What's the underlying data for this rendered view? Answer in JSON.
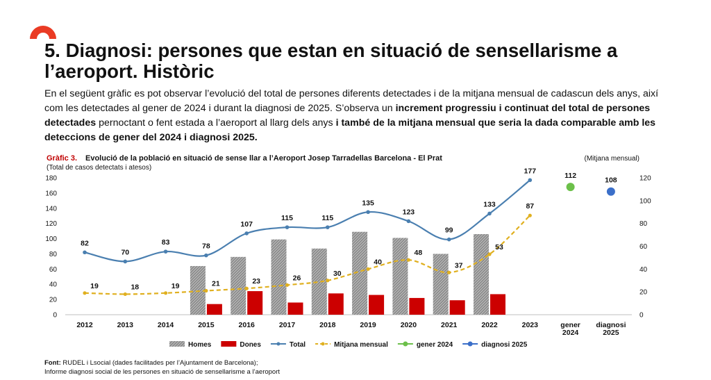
{
  "title": "5. Diagnosi: persones que estan en situació de sensellarisme a l’aeroport. Històric",
  "intro": {
    "t1": "En el següent gràfic es pot observar l’evolució del total de persones diferents detectades i de la mitjana mensual de cadascun dels anys, així com les detectades al gener de 2024 i durant la diagnosi de 2025. S’observa un ",
    "b1": "increment progressiu i continuat del total de persones detectades",
    "t2": " pernoctant o fent estada a l’aeroport al llarg dels anys ",
    "b2": "i també de la mitjana mensual que seria la dada comparable amb les deteccions de gener del 2024 i diagnosi 2025."
  },
  "chart_data": {
    "type": "bar+line",
    "title_prefix": "Gràfic 3.",
    "title": "Evolució de la població en situació de sense llar a l’Aeroport Josep Tarradellas Barcelona - El Prat",
    "ylabel_left": "(Total de casos detectats i atesos)",
    "ylabel_right": "(Mitjana mensual)",
    "ylim_left": [
      0,
      180
    ],
    "yticks_left": [
      0,
      20,
      40,
      60,
      80,
      100,
      120,
      140,
      160,
      180
    ],
    "ylim_right": [
      0,
      120
    ],
    "yticks_right": [
      0,
      20,
      40,
      60,
      80,
      100,
      120
    ],
    "categories": [
      "2012",
      "2013",
      "2014",
      "2015",
      "2016",
      "2017",
      "2018",
      "2019",
      "2020",
      "2021",
      "2022",
      "2023",
      "gener 2024",
      "diagnosi 2025"
    ],
    "series": [
      {
        "name": "Homes",
        "kind": "bar",
        "axis": "left",
        "color": "#999999",
        "values": [
          null,
          null,
          null,
          64,
          76,
          99,
          87,
          109,
          101,
          80,
          106,
          null,
          null,
          null
        ]
      },
      {
        "name": "Dones",
        "kind": "bar",
        "axis": "left",
        "color": "#cc0000",
        "values": [
          null,
          null,
          null,
          14,
          31,
          16,
          28,
          26,
          22,
          19,
          27,
          null,
          null,
          null
        ]
      },
      {
        "name": "Total",
        "kind": "line",
        "axis": "left",
        "color": "#4a7fb0",
        "values": [
          82,
          70,
          83,
          78,
          107,
          115,
          115,
          135,
          123,
          99,
          133,
          177,
          null,
          null
        ]
      },
      {
        "name": "Mitjana mensual",
        "kind": "dashed-line",
        "axis": "right",
        "color": "#e0b020",
        "values": [
          19,
          18,
          19,
          21,
          23,
          26,
          30,
          40,
          48,
          37,
          53,
          87,
          null,
          null
        ]
      },
      {
        "name": "gener 2024",
        "kind": "point",
        "axis": "right",
        "color": "#6cc04a",
        "values": [
          null,
          null,
          null,
          null,
          null,
          null,
          null,
          null,
          null,
          null,
          null,
          null,
          112,
          null
        ]
      },
      {
        "name": "diagnosi 2025",
        "kind": "point",
        "axis": "right",
        "color": "#3b6fc9",
        "values": [
          null,
          null,
          null,
          null,
          null,
          null,
          null,
          null,
          null,
          null,
          null,
          null,
          null,
          108
        ]
      }
    ],
    "legend_position": "bottom",
    "grid": false
  },
  "footer": {
    "label": "Font:",
    "line1": " RUDEL i Lsocial (dades facilitades per l’Ajuntament de Barcelona);",
    "line2": "Informe diagnosi social de les persones en situació de sensellarisme a l’aeroport"
  }
}
